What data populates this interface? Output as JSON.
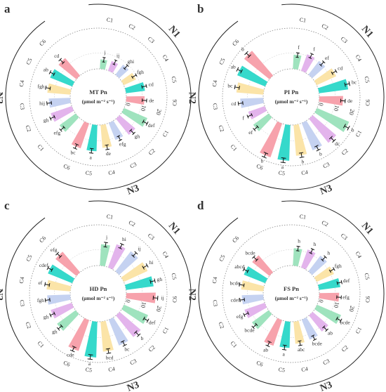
{
  "colors": {
    "C1": "#9FE3BE",
    "C2": "#E3B4EC",
    "C3": "#C5D2F1",
    "C4": "#FBE4A8",
    "C5": "#35D9CB",
    "C6": "#F7A2AC",
    "error_bar": "#111111",
    "rule": "#222222",
    "ring": "#777777"
  },
  "chart_data": [
    {
      "type": "bar",
      "subplot_label": "a",
      "center_title_line1": "MT Pn",
      "center_title_line2": "(μmol m⁻² s⁻¹)",
      "radial_ticks": [
        "0",
        "10",
        "20"
      ],
      "ylim": [
        0,
        20
      ],
      "groups": [
        "N1",
        "N2",
        "N3"
      ],
      "categories": [
        "C1",
        "C2",
        "C3",
        "C4",
        "C5",
        "C6"
      ],
      "values": {
        "N1": [
          6.0,
          6.5,
          8.0,
          8.5,
          12.0,
          11.5
        ],
        "N2": [
          12.5,
          14.0,
          13.5,
          14.5,
          15.0,
          14.5
        ],
        "N3": [
          16.0,
          13.0,
          11.5,
          14.5,
          16.5,
          16.5
        ]
      },
      "letters": {
        "N1": [
          "j",
          "ij",
          "ghi",
          "fgh",
          "cd",
          "de"
        ],
        "N2": [
          "efg",
          "gh",
          "hij",
          "fgh",
          "ab",
          "cd"
        ],
        "N3": [
          "def",
          "gh",
          "efg",
          "de",
          "a",
          "bc"
        ]
      }
    },
    {
      "type": "bar",
      "subplot_label": "b",
      "center_title_line1": "PI Pn",
      "center_title_line2": "(μmol m⁻² s⁻¹)",
      "radial_ticks": [
        "0",
        "10",
        "20"
      ],
      "ylim": [
        0,
        20
      ],
      "groups": [
        "N1",
        "N2",
        "N3"
      ],
      "categories": [
        "C1",
        "C2",
        "C3",
        "C4",
        "C5",
        "C6"
      ],
      "values": {
        "N1": [
          9.0,
          11.0,
          11.0,
          13.5,
          18.5,
          15.0
        ],
        "N2": [
          12.0,
          11.0,
          14.5,
          17.0,
          19.0,
          20.5
        ],
        "N3": [
          22.0,
          19.5,
          18.5,
          19.5,
          22.5,
          22.5
        ]
      },
      "letters": {
        "N1": [
          "f",
          "f",
          "ef",
          "cd",
          "bc",
          "de"
        ],
        "N2": [
          "ef",
          "f",
          "cd",
          "bc",
          "ab",
          "b"
        ],
        "N3": [
          "b",
          "dc",
          "b",
          "b",
          "a",
          "b"
        ]
      }
    },
    {
      "type": "bar",
      "subplot_label": "c",
      "center_title_line1": "HD Pn",
      "center_title_line2": "(μmol m⁻² s⁻¹)",
      "radial_ticks": [
        "0",
        "10",
        "20"
      ],
      "ylim": [
        0,
        20
      ],
      "groups": [
        "N1",
        "N2",
        "N3"
      ],
      "categories": [
        "C1",
        "C2",
        "C3",
        "C4",
        "C5",
        "C6"
      ],
      "values": {
        "N1": [
          13.5,
          15.5,
          16.0,
          16.5,
          17.5,
          18.5
        ],
        "N2": [
          14.5,
          14.0,
          14.5,
          15.0,
          16.5,
          17.0
        ],
        "N3": [
          16.5,
          17.5,
          17.5,
          19.0,
          22.5,
          20.5
        ]
      },
      "letters": {
        "N1": [
          "j",
          "hi",
          "ij",
          "hi",
          "gh",
          "ij"
        ],
        "N2": [
          "gh",
          "gh",
          "fgh",
          "ef",
          "cdef",
          "efg"
        ],
        "N3": [
          "def",
          "b",
          "bc",
          "bcd",
          "a",
          "cde"
        ]
      }
    },
    {
      "type": "bar",
      "subplot_label": "d",
      "center_title_line1": "FS Pn",
      "center_title_line2": "(μmol m⁻² s⁻¹)",
      "radial_ticks": [
        "0",
        "10",
        "20"
      ],
      "ylim": [
        0,
        20
      ],
      "groups": [
        "N1",
        "N2",
        "N3"
      ],
      "categories": [
        "C1",
        "C2",
        "C3",
        "C4",
        "C5",
        "C6"
      ],
      "values": {
        "N1": [
          11.0,
          12.0,
          12.5,
          12.0,
          13.5,
          12.5
        ],
        "N2": [
          13.0,
          13.5,
          13.5,
          14.0,
          14.5,
          14.0
        ],
        "N3": [
          16.5,
          13.0,
          13.5,
          14.0,
          16.5,
          17.0
        ]
      },
      "letters": {
        "N1": [
          "h",
          "h",
          "h",
          "fgh",
          "def",
          "efg"
        ],
        "N2": [
          "bcde",
          "efg",
          "cdef",
          "bcde",
          "abcd",
          "bcde"
        ],
        "N3": [
          "bcde",
          "ab",
          "bcde",
          "abc",
          "a",
          "ab"
        ]
      }
    }
  ]
}
